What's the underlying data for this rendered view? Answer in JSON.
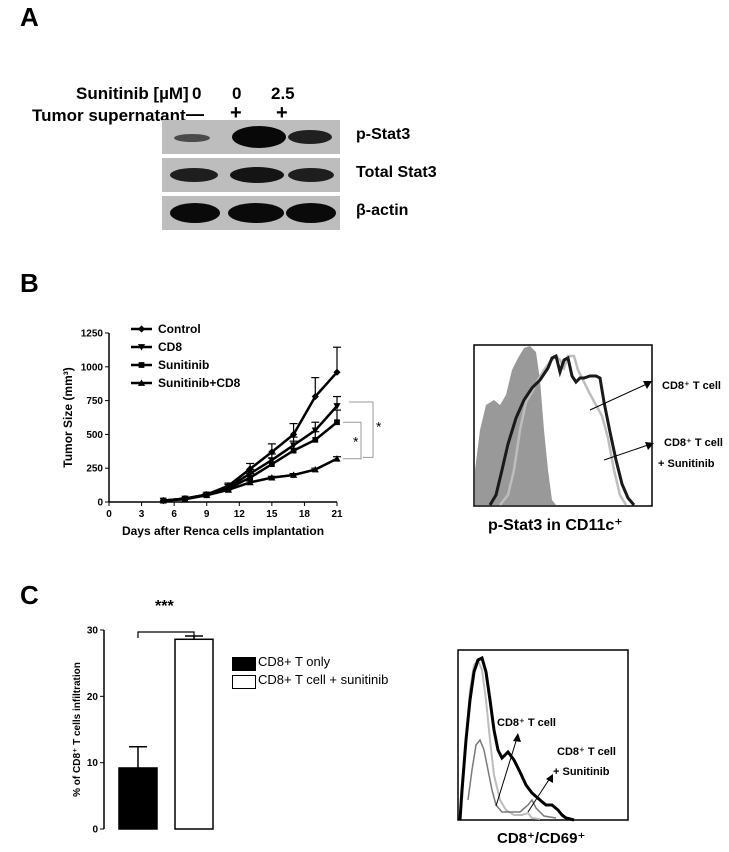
{
  "panel_a": {
    "label": "A",
    "treatment_rows": [
      {
        "label": "Sunitinib [µM]",
        "values": [
          "0",
          "0",
          "2.5"
        ]
      },
      {
        "label": "Tumor supernatant",
        "values": [
          "—",
          "+",
          "+"
        ]
      }
    ],
    "blot_labels": [
      "p-Stat3",
      "Total Stat3",
      "β-actin"
    ]
  },
  "panel_b": {
    "label": "B",
    "histogram_legend": [
      "CD8⁺ T cell",
      "CD8⁺ T cell",
      "+ Sunitinib"
    ],
    "histogram_caption": "p-Stat3 in CD11c⁺"
  },
  "panel_c": {
    "label": "C",
    "significance": "***",
    "histogram_legend": [
      "CD8⁺ T cell",
      "CD8⁺ T cell",
      "+ Sunitinib"
    ],
    "histogram_caption": "CD8⁺/CD69⁺"
  },
  "chart_data": [
    {
      "type": "line",
      "xlabel": "Days after Renca cells implantation",
      "ylabel": "Tumor Size (mm³)",
      "x_ticks": [
        0,
        3,
        6,
        9,
        12,
        15,
        18,
        21
      ],
      "y_ticks": [
        0,
        250,
        500,
        750,
        1000,
        1250
      ],
      "xlim": [
        0,
        21
      ],
      "ylim": [
        0,
        1250
      ],
      "legend": "top-left",
      "significance": [
        "*",
        "*"
      ],
      "x": [
        5,
        7,
        9,
        11,
        13,
        15,
        17,
        19,
        21
      ],
      "series": [
        {
          "name": "Control",
          "marker": "diamond",
          "values": [
            10,
            25,
            55,
            120,
            245,
            370,
            500,
            780,
            960
          ],
          "errors": [
            0,
            5,
            10,
            20,
            40,
            60,
            80,
            140,
            185
          ]
        },
        {
          "name": "CD8",
          "marker": "triangle-down",
          "values": [
            10,
            25,
            55,
            110,
            210,
            310,
            420,
            530,
            710
          ],
          "errors": [
            0,
            5,
            10,
            20,
            30,
            45,
            60,
            60,
            70
          ]
        },
        {
          "name": "Sunitinib",
          "marker": "square",
          "values": [
            10,
            25,
            55,
            100,
            180,
            280,
            380,
            460,
            590
          ],
          "errors": [
            0,
            5,
            10,
            15,
            30,
            45,
            70,
            60,
            90
          ]
        },
        {
          "name": "Sunitinib+CD8",
          "marker": "triangle-up",
          "values": [
            10,
            20,
            50,
            90,
            145,
            180,
            200,
            240,
            320
          ],
          "errors": [
            0,
            5,
            5,
            10,
            10,
            10,
            10,
            10,
            15
          ]
        }
      ]
    },
    {
      "type": "bar",
      "ylabel": "% of CD8⁺ T cells infiltration",
      "y_ticks": [
        0,
        10,
        20,
        30
      ],
      "ylim": [
        0,
        30
      ],
      "legend": "right",
      "series": [
        {
          "name": "CD8+ T only",
          "values": [
            9.2
          ],
          "error": 3.2,
          "fill": "#000000"
        },
        {
          "name": "CD8+ T cell + sunitinib",
          "values": [
            28.6
          ],
          "error": 0.5,
          "fill": "#ffffff"
        }
      ]
    }
  ]
}
